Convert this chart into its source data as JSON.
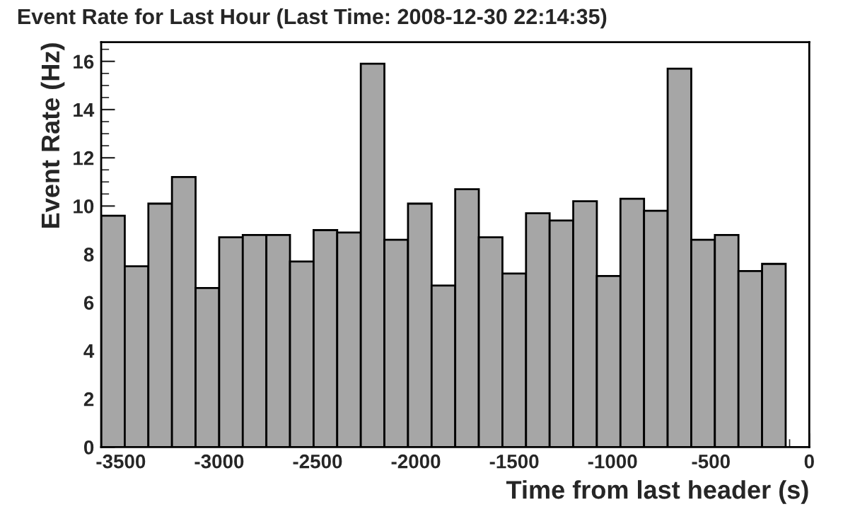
{
  "chart_data": {
    "type": "histogram",
    "title": "Event Rate for Last Hour (Last Time: 2008-12-30 22:14:35)",
    "xlabel": "Time from last header (s)",
    "ylabel": "Event Rate (Hz)",
    "bins": [
      -3600,
      -3480,
      -3360,
      -3240,
      -3120,
      -3000,
      -2880,
      -2760,
      -2640,
      -2520,
      -2400,
      -2280,
      -2160,
      -2040,
      -1920,
      -1800,
      -1680,
      -1560,
      -1440,
      -1320,
      -1200,
      -1080,
      -960,
      -840,
      -720,
      -600,
      -480,
      -360,
      -240,
      -120,
      0
    ],
    "values": [
      9.6,
      7.5,
      10.1,
      11.2,
      6.6,
      8.7,
      8.8,
      8.8,
      7.7,
      9.0,
      8.9,
      15.9,
      8.6,
      10.1,
      6.7,
      10.7,
      8.7,
      7.2,
      9.7,
      9.4,
      10.2,
      7.1,
      10.3,
      9.8,
      15.7,
      8.6,
      8.8,
      7.3,
      7.6,
      0
    ],
    "color": "#a6a6a6",
    "xlim": [
      -3600,
      0
    ],
    "xticks": [
      -3500,
      -3000,
      -2500,
      -2000,
      -1500,
      -1000,
      -500,
      0
    ],
    "ylim": [
      0,
      16.8
    ],
    "yticks": [
      0,
      2,
      4,
      6,
      8,
      10,
      12,
      14,
      16
    ],
    "grid": false
  }
}
